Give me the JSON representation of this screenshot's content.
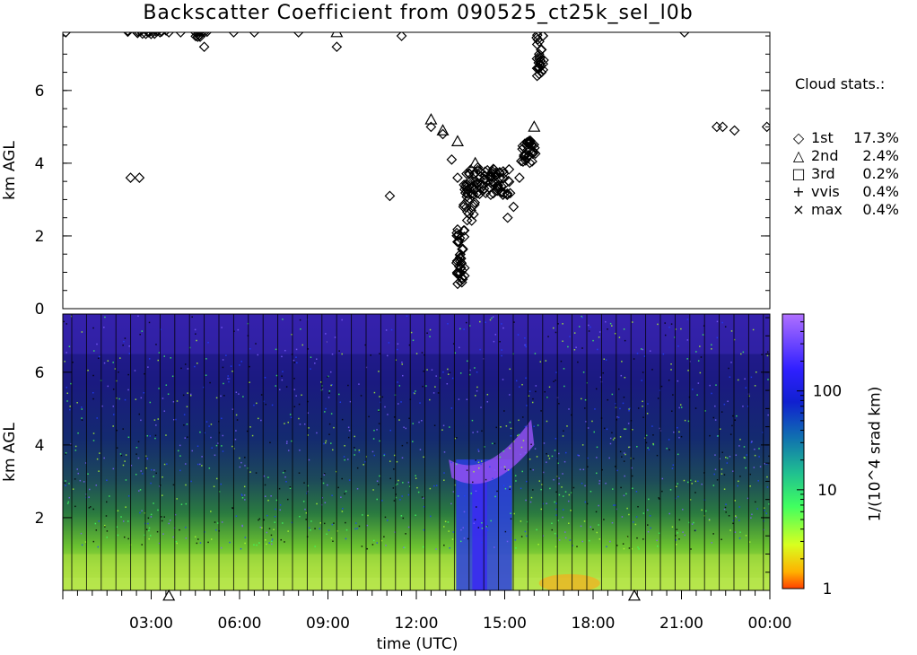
{
  "title": "Backscatter Coefficient from 090525_ct25k_sel_l0b",
  "x_axis": {
    "label": "time (UTC)",
    "ticks": [
      "03:00",
      "06:00",
      "09:00",
      "12:00",
      "15:00",
      "18:00",
      "21:00",
      "00:00"
    ]
  },
  "top_panel": {
    "ylabel": "km AGL",
    "yticks": [
      "0",
      "2",
      "4",
      "6"
    ]
  },
  "bottom_panel": {
    "ylabel": "km AGL",
    "yticks": [
      "2",
      "4",
      "6"
    ]
  },
  "colorbar": {
    "label": "1/(10^4 srad km)",
    "ticks": [
      "1",
      "10",
      "100"
    ],
    "colors": [
      "#ff4000",
      "#ffc000",
      "#b0ff20",
      "#40ff60",
      "#20b080",
      "#1050b0",
      "#1010e0",
      "#5030ff",
      "#a060ff"
    ]
  },
  "cloud_stats": {
    "title": "Cloud stats.:",
    "rows": [
      {
        "symbol": "diamond",
        "glyph": "◇",
        "name": "1st",
        "value": "17.3%"
      },
      {
        "symbol": "triangle",
        "glyph": "△",
        "name": "2nd",
        "value": "2.4%"
      },
      {
        "symbol": "square",
        "glyph": "□",
        "name": "3rd",
        "value": "0.2%"
      },
      {
        "symbol": "plus",
        "glyph": "+",
        "name": "vvis",
        "value": "0.4%"
      },
      {
        "symbol": "cross",
        "glyph": "×",
        "name": "max",
        "value": "0.4%"
      }
    ]
  },
  "chart_data": {
    "type": "scatter",
    "title": "Backscatter Coefficient from 090525_ct25k_sel_l0b",
    "xlabel": "time (UTC)",
    "ylabel": "km AGL",
    "xlim": [
      0,
      24
    ],
    "ylim": [
      0,
      7.6
    ],
    "series": [
      {
        "name": "1st",
        "x": [
          0.1,
          2.3,
          2.6,
          2.9,
          3.3,
          3.6,
          4.0,
          4.5,
          4.8,
          5.8,
          6.5,
          8.0,
          9.3,
          11.1,
          11.5,
          12.5,
          12.9,
          13.2,
          13.4,
          13.5,
          13.6,
          13.8,
          14.0,
          14.3,
          14.6,
          14.9,
          15.1,
          15.3,
          15.5,
          15.8,
          15.9,
          16.0,
          16.1,
          16.2,
          16.3,
          21.1,
          22.2,
          22.4,
          22.8,
          23.9
        ],
        "y": [
          7.6,
          3.6,
          3.6,
          7.6,
          7.6,
          7.6,
          7.6,
          7.6,
          7.2,
          7.6,
          7.6,
          7.6,
          7.2,
          3.1,
          7.5,
          5.0,
          4.8,
          4.1,
          3.6,
          1.1,
          2.8,
          3.7,
          3.5,
          3.3,
          3.4,
          3.2,
          2.5,
          2.8,
          3.6,
          4.2,
          4.5,
          4.3,
          6.4,
          6.9,
          7.5,
          7.6,
          5.0,
          5.0,
          4.9,
          5.0
        ]
      },
      {
        "name": "2nd",
        "x": [
          9.3,
          12.5,
          12.9,
          13.4,
          14.0,
          16.0
        ],
        "y": [
          7.6,
          5.2,
          4.9,
          4.6,
          4.0,
          5.0
        ]
      }
    ]
  }
}
